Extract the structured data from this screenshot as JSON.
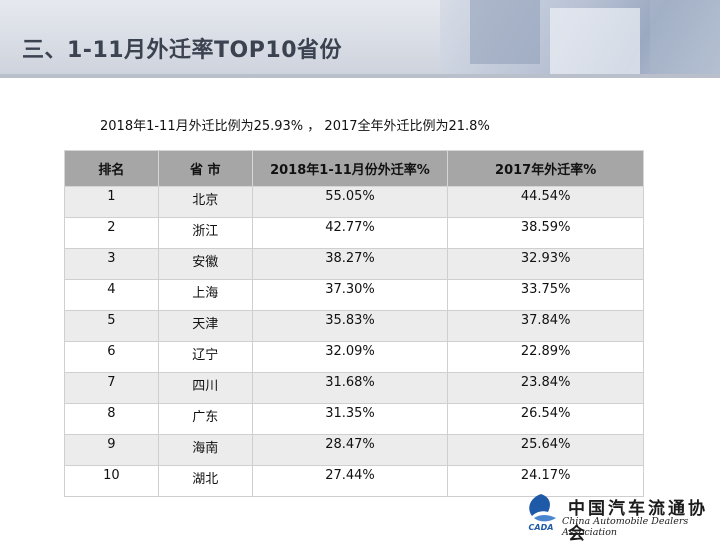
{
  "title": "三、1-11月外迁率TOP10省份",
  "summary": "2018年1-11月外迁比例为25.93% ， 2017全年外迁比例为21.8%",
  "table": {
    "headers": [
      "排名",
      "省 市",
      "2018年1-11月份外迁率%",
      "2017年外迁率%"
    ],
    "rows": [
      [
        "1",
        "北京",
        "55.05%",
        "44.54%"
      ],
      [
        "2",
        "浙江",
        "42.77%",
        "38.59%"
      ],
      [
        "3",
        "安徽",
        "38.27%",
        "32.93%"
      ],
      [
        "4",
        "上海",
        "37.30%",
        "33.75%"
      ],
      [
        "5",
        "天津",
        "35.83%",
        "37.84%"
      ],
      [
        "6",
        "辽宁",
        "32.09%",
        "22.89%"
      ],
      [
        "7",
        "四川",
        "31.68%",
        "23.84%"
      ],
      [
        "8",
        "广东",
        "31.35%",
        "26.54%"
      ],
      [
        "9",
        "海南",
        "28.47%",
        "25.64%"
      ],
      [
        "10",
        "湖北",
        "27.44%",
        "24.17%"
      ]
    ]
  },
  "logo": {
    "mark_text": "CADA",
    "name_cn": "中国汽车流通协会",
    "name_en": "China Automobile Dealers Association",
    "brand_color": "#1f5aa8"
  }
}
